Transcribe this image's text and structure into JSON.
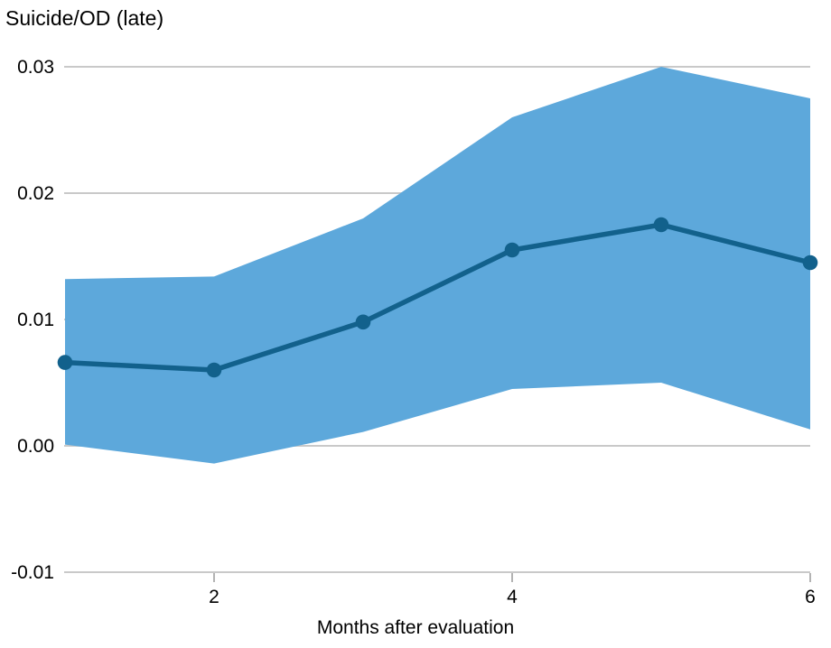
{
  "chart": {
    "title": "Suicide/OD (late)",
    "xlabel": "Months after evaluation"
  },
  "chart_data": {
    "type": "line",
    "title": "Suicide/OD (late)",
    "xlabel": "Months after evaluation",
    "ylabel": "",
    "x": [
      1,
      2,
      3,
      4,
      5,
      6
    ],
    "series": [
      {
        "name": "point-estimate",
        "values": [
          0.0066,
          0.006,
          0.0098,
          0.0155,
          0.0175,
          0.0145
        ]
      }
    ],
    "band": {
      "name": "confidence-interval",
      "upper": [
        0.0132,
        0.0134,
        0.018,
        0.026,
        0.03,
        0.0275
      ],
      "lower": [
        0.0001,
        -0.0014,
        0.0011,
        0.0045,
        0.005,
        0.0013
      ]
    },
    "xticks": {
      "values": [
        2,
        4,
        6
      ],
      "labels": [
        "2",
        "4",
        "6"
      ]
    },
    "yticks": {
      "values": [
        0.03,
        0.02,
        0.01,
        0.0,
        -0.01
      ],
      "labels": [
        "0.03",
        "0.02",
        "0.01",
        "0.00",
        "-0.01"
      ]
    },
    "xlim": [
      1,
      6
    ],
    "ylim": [
      -0.01,
      0.03
    ],
    "grid": true,
    "legend_position": "none",
    "colors": {
      "band": "#5da8db",
      "line": "#12618c",
      "marker": "#12618c",
      "gridline": "#c9c9c9",
      "tick": "#b3b3b3",
      "text": "#000000"
    }
  }
}
